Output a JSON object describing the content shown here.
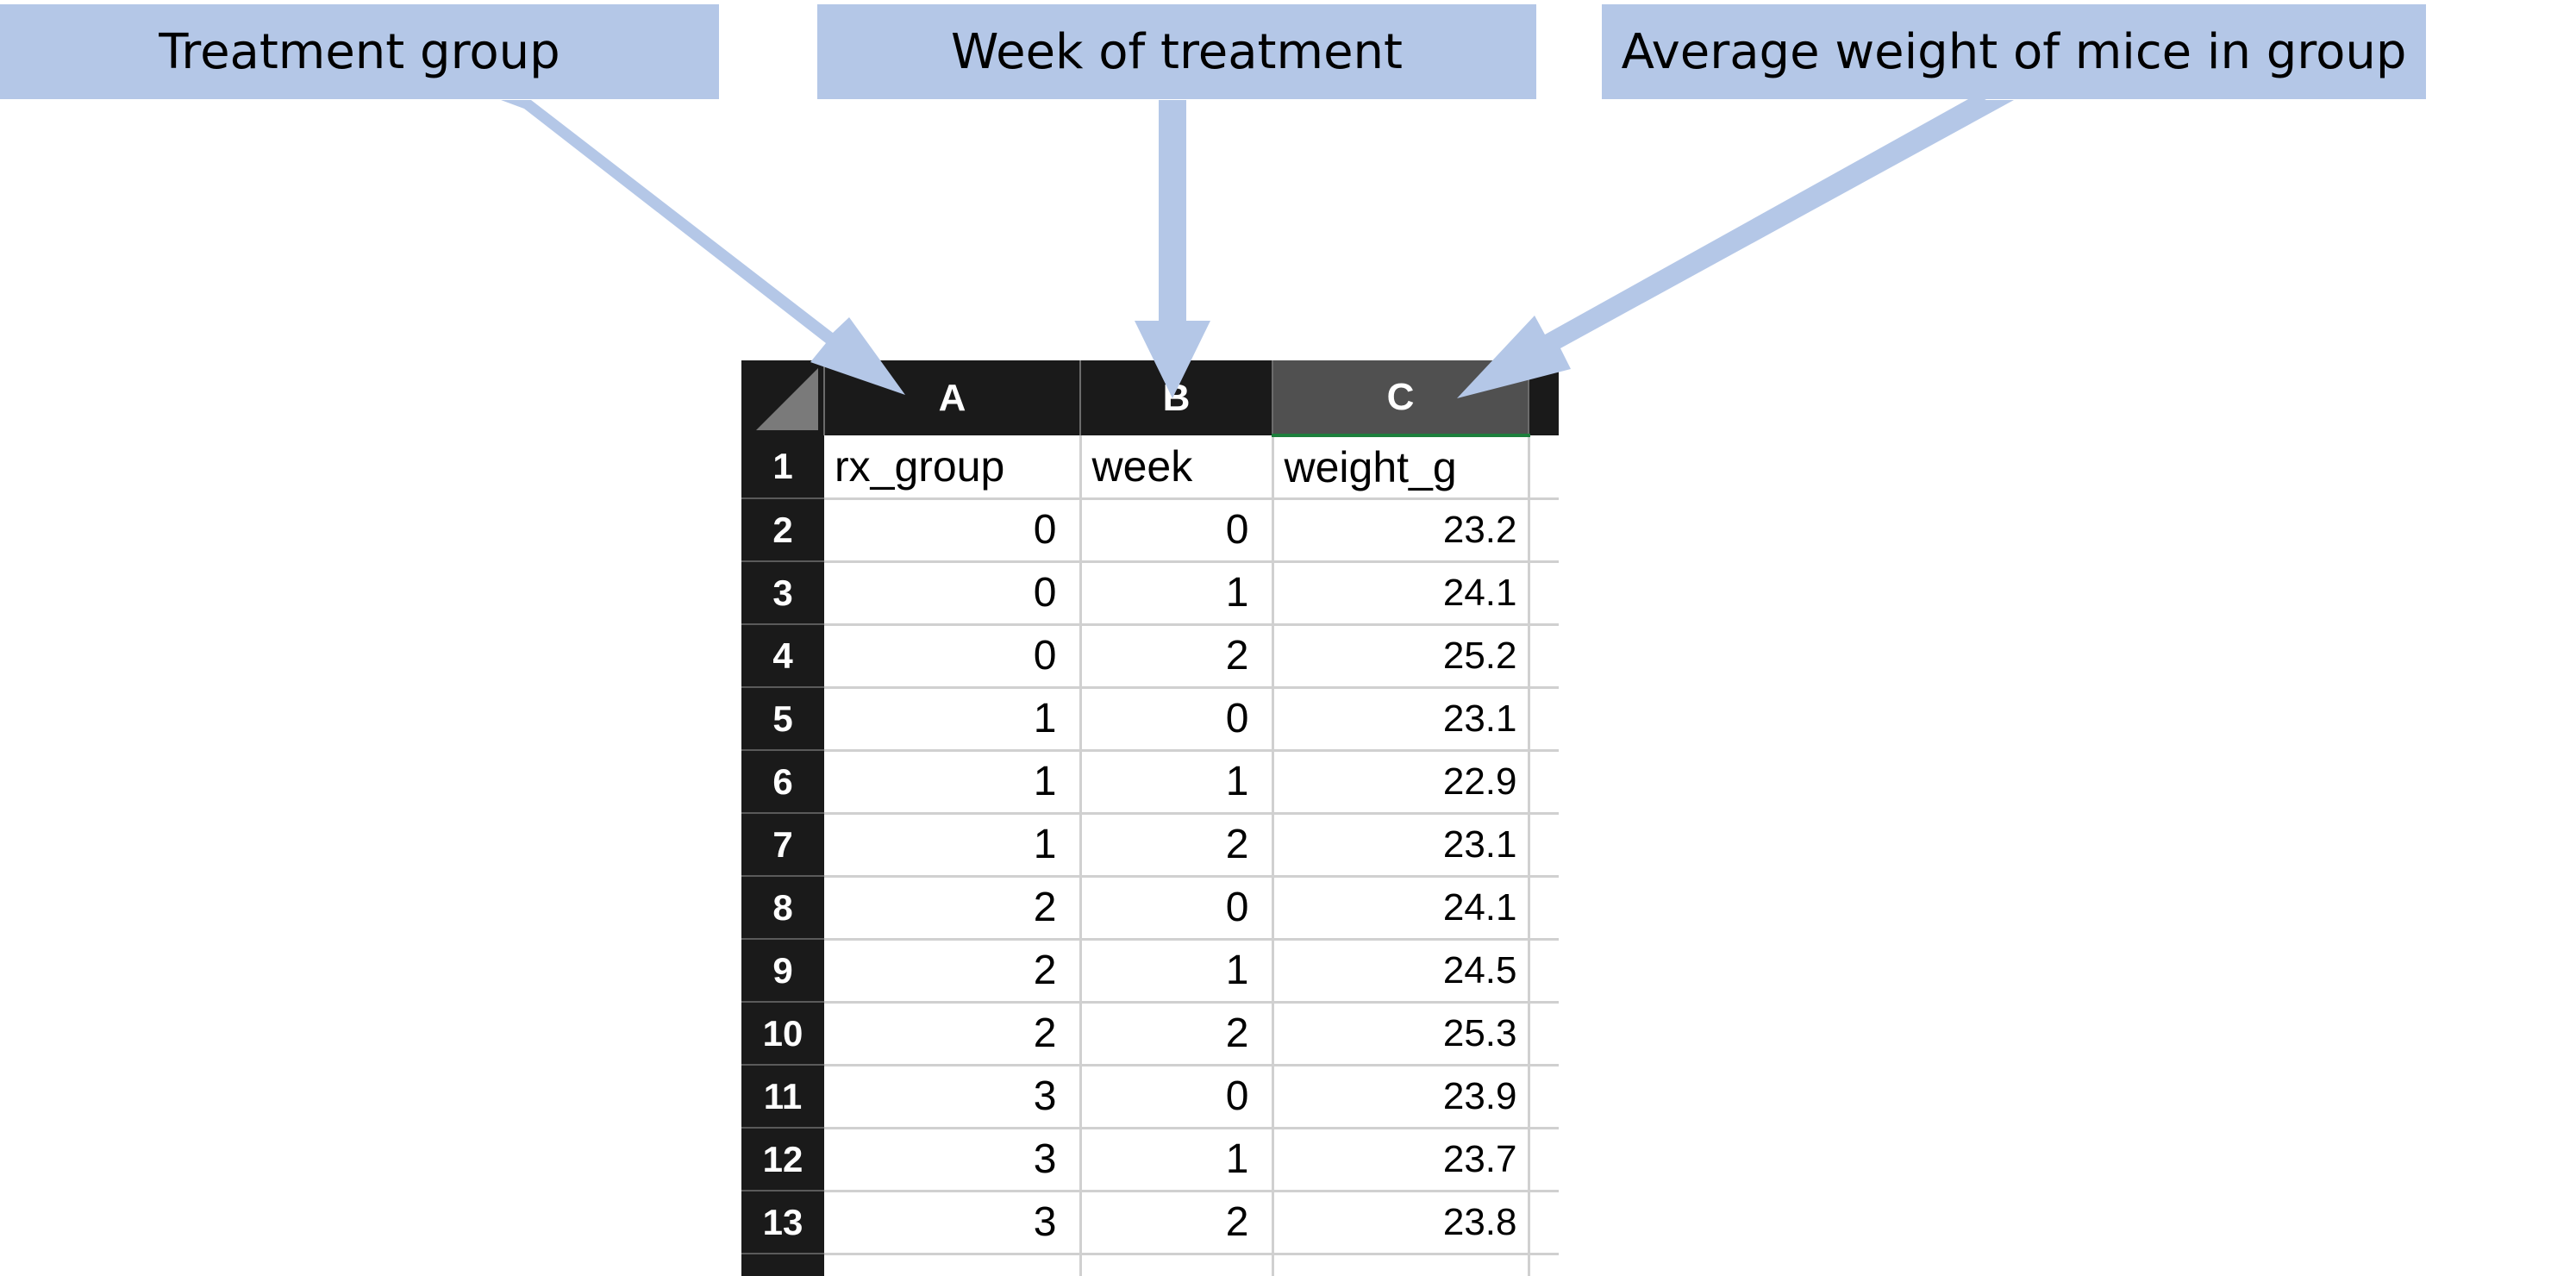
{
  "callouts": {
    "treatment": "Treatment group",
    "week": "Week of treatment",
    "weight": "Average weight of mice in group"
  },
  "colors": {
    "callout_fill": "#b4c7e7",
    "header_dark": "#1a1a1a",
    "selected_header": "#505050",
    "selection_accent": "#1d7f3c"
  },
  "sheet": {
    "columns": [
      "A",
      "B",
      "C"
    ],
    "selected_column": "C",
    "row_numbers": [
      "1",
      "2",
      "3",
      "4",
      "5",
      "6",
      "7",
      "8",
      "9",
      "10",
      "11",
      "12",
      "13"
    ],
    "header_row": [
      "rx_group",
      "week",
      "weight_g"
    ],
    "rows": [
      [
        "0",
        "0",
        "23.2"
      ],
      [
        "0",
        "1",
        "24.1"
      ],
      [
        "0",
        "2",
        "25.2"
      ],
      [
        "1",
        "0",
        "23.1"
      ],
      [
        "1",
        "1",
        "22.9"
      ],
      [
        "1",
        "2",
        "23.1"
      ],
      [
        "2",
        "0",
        "24.1"
      ],
      [
        "2",
        "1",
        "24.5"
      ],
      [
        "2",
        "2",
        "25.3"
      ],
      [
        "3",
        "0",
        "23.9"
      ],
      [
        "3",
        "1",
        "23.7"
      ],
      [
        "3",
        "2",
        "23.8"
      ]
    ]
  }
}
